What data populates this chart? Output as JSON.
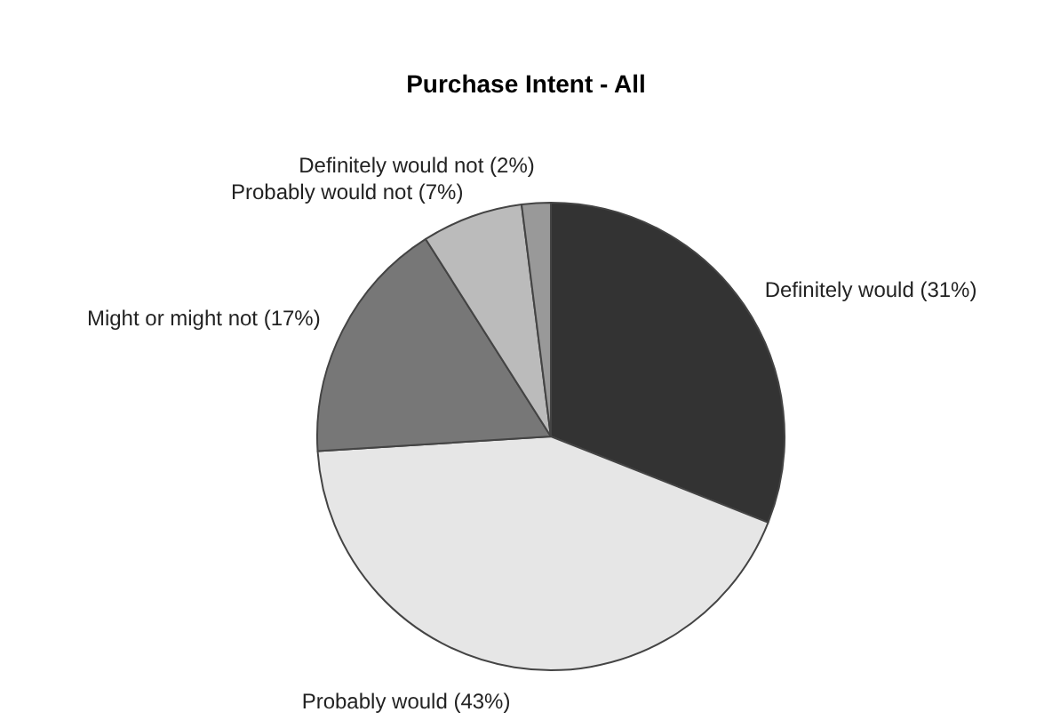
{
  "chart_data": {
    "type": "pie",
    "title": "Purchase Intent - All",
    "categories": [
      "Definitely would (31%)",
      "Probably would (43%)",
      "Might or might not (17%)",
      "Probably would not (7%)",
      "Definitely would not (2%)"
    ],
    "values": [
      31,
      43,
      17,
      7,
      2
    ],
    "colors": [
      "#333333",
      "#e6e6e6",
      "#777777",
      "#bbbbbb",
      "#999999"
    ],
    "legend": false
  }
}
